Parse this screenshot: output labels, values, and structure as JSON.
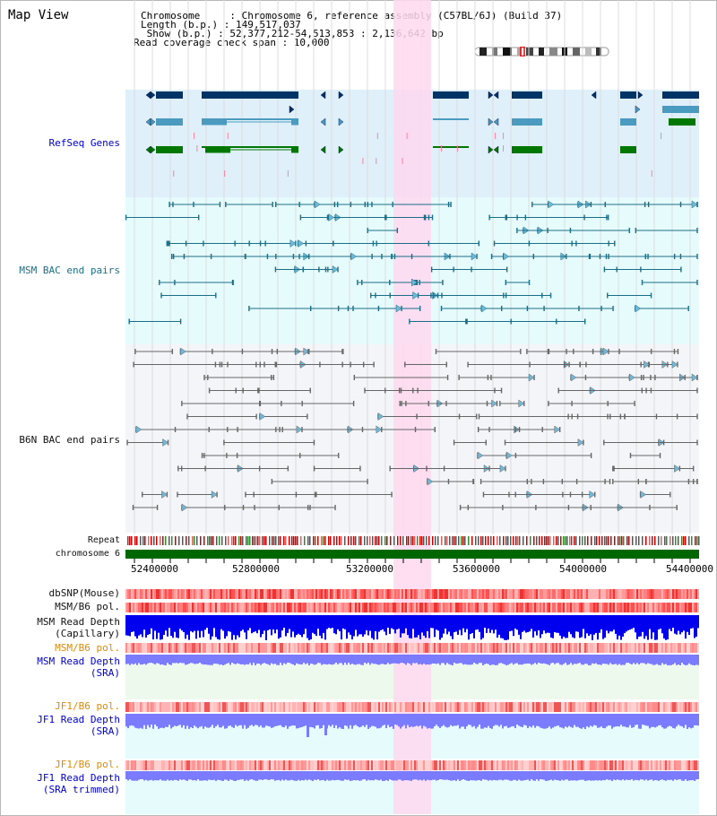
{
  "view_title": "Map View",
  "header": {
    "chromosome": "Chromosome     : Chromosome 6, reference assembly (C57BL/6J) (Build 37)",
    "length": "Length (b.p.) : 149,517,037",
    "show": " Show (b.p.) : 52,377,212-54,513,853 : 2,136,642 bp",
    "span": "Read coverage check span : 10,000"
  },
  "tracks": {
    "refseq": "RefSeq Genes",
    "msm_bac": "MSM BAC end pairs",
    "b6n_bac": "B6N BAC end pairs",
    "repeat": "Repeat",
    "chromosome": "chromosome 6",
    "dbsnp": "dbSNP(Mouse)",
    "msm_b6_pol": "MSM/B6 pol.",
    "msm_read_depth_cap": "MSM Read Depth\n(Capillary)",
    "msm_b6_pol2": "MSM/B6 pol.",
    "msm_read_depth_sra": "MSM Read Depth\n(SRA)",
    "jf1_b6_pol": "JF1/B6 pol.",
    "jf1_read_depth_sra": "JF1 Read Depth\n(SRA)",
    "jf1_b6_pol2": "JF1/B6 pol.",
    "jf1_read_depth_trim": "JF1 Read Depth\n(SRA trimmed)"
  },
  "axis": {
    "ticks": [
      "52400000",
      "52800000",
      "53200000",
      "53600000",
      "54000000",
      "54400000"
    ]
  },
  "colors": {
    "refseq_bg": "#dff0fb",
    "msm_bg": "#e6fbfb",
    "b6n_bg": "#f3f5f8",
    "highlight": "#ffd8f0",
    "gene_dark": "#003366",
    "gene_mid": "#4a9bbf",
    "gene_green": "#007700",
    "msm_line": "#1a6f87",
    "b6n_line": "#666666",
    "chrom": "#006600",
    "depth_blue": "#0000ee",
    "depth_violet": "#7b7bff"
  }
}
